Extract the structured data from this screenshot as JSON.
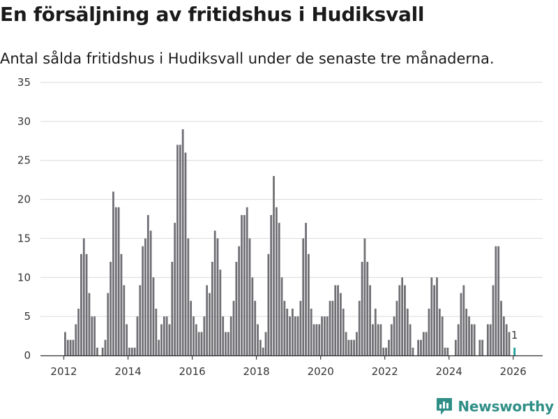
{
  "header": {
    "title": "En försäljning av fritidshus i Hudiksvall",
    "subtitle": "Antal sålda fritidshus i Hudiksvall under de senaste tre månaderna."
  },
  "brand": {
    "name": "Newsworthy",
    "color": "#2f8f87"
  },
  "colors": {
    "bar": "#6e6e73",
    "highlight": "#1f9e95",
    "grid": "#d9d9d9"
  },
  "chart_data": {
    "type": "bar",
    "title": "En försäljning av fritidshus i Hudiksvall",
    "subtitle": "Antal sålda fritidshus i Hudiksvall under de senaste tre månaderna.",
    "xlabel": "",
    "ylabel": "",
    "ylim": [
      0,
      35
    ],
    "yticks": [
      0,
      5,
      10,
      15,
      20,
      25,
      30,
      35
    ],
    "xticks": [
      2012,
      2014,
      2016,
      2018,
      2020,
      2022,
      2024,
      2026
    ],
    "start": {
      "year": 2012,
      "month": 1
    },
    "grid": true,
    "values": [
      3,
      2,
      2,
      2,
      4,
      6,
      13,
      15,
      13,
      8,
      5,
      5,
      1,
      0,
      1,
      2,
      8,
      12,
      21,
      19,
      19,
      13,
      9,
      4,
      1,
      1,
      1,
      5,
      9,
      14,
      15,
      18,
      16,
      10,
      6,
      2,
      4,
      5,
      5,
      4,
      12,
      17,
      27,
      27,
      29,
      26,
      15,
      7,
      5,
      4,
      3,
      3,
      5,
      9,
      8,
      12,
      16,
      15,
      11,
      5,
      3,
      3,
      5,
      7,
      12,
      14,
      18,
      18,
      19,
      15,
      10,
      7,
      4,
      2,
      1,
      3,
      13,
      18,
      23,
      19,
      17,
      10,
      7,
      6,
      5,
      6,
      5,
      5,
      7,
      15,
      17,
      13,
      6,
      4,
      4,
      4,
      5,
      5,
      5,
      7,
      7,
      9,
      9,
      8,
      6,
      3,
      2,
      2,
      2,
      3,
      7,
      12,
      15,
      12,
      9,
      4,
      6,
      4,
      4,
      1,
      1,
      2,
      4,
      5,
      7,
      9,
      10,
      9,
      6,
      4,
      1,
      0,
      2,
      2,
      3,
      3,
      6,
      10,
      9,
      10,
      6,
      5,
      1,
      1,
      0,
      0,
      2,
      4,
      8,
      9,
      6,
      5,
      4,
      4,
      0,
      2,
      2,
      0,
      4,
      4,
      9,
      14,
      14,
      7,
      5,
      4,
      3,
      0,
      1
    ],
    "annotation": {
      "text": "1"
    }
  }
}
